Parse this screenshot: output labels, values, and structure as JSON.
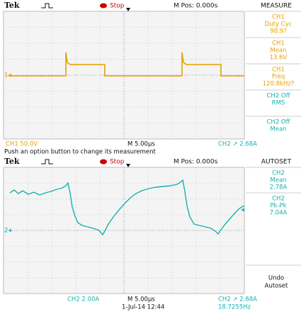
{
  "top": {
    "header": {
      "brand": "Tek",
      "status": "Stop",
      "position": "M Pos: 0.000s",
      "menu": "MEASURE"
    },
    "measurements": [
      {
        "channel": "CH1",
        "label": "Duty Cyc",
        "value": "98.9?"
      },
      {
        "channel": "CH1",
        "label": "Mean",
        "value": "13.6V"
      },
      {
        "channel": "CH1",
        "label": "Freq",
        "value": "120.8kHz?"
      },
      {
        "channel": "CH2 Off",
        "label": "RMS"
      },
      {
        "channel": "CH2 Off",
        "label": "Mean"
      }
    ],
    "marker": "1",
    "footer": {
      "scale": "CH1  50.0V",
      "time": "M 5.00µs",
      "trigger": "CH2 ↗ 2.68A"
    }
  },
  "message": "Push an option button to change its measurement",
  "bottom": {
    "header": {
      "brand": "Tek",
      "status": "Stop",
      "position": "M Pos: 0.000s",
      "menu": "AUTOSET"
    },
    "measurements": [
      {
        "channel": "CH2",
        "label": "Mean",
        "value": "2.78A"
      },
      {
        "channel": "CH2",
        "label": "Pk-Pk",
        "value": "7.04A"
      }
    ],
    "action": [
      "Undo",
      "Autoset"
    ],
    "marker": "2",
    "footer": {
      "scale": "CH2  2.00A",
      "time": "M 5.00µs",
      "date": "1-Jul-14 12:44",
      "trigger": "CH2 ↗ 2.68A",
      "frequency": "18.7255Hz"
    }
  }
}
